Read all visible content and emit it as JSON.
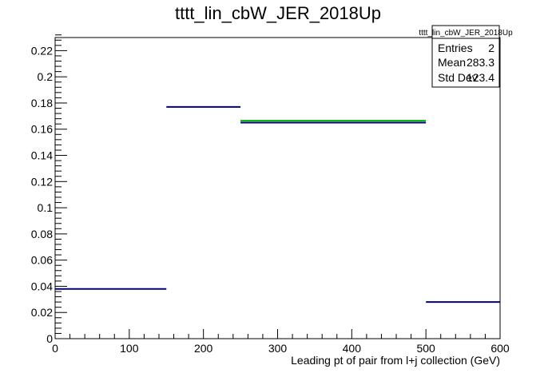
{
  "chart_data": {
    "type": "step",
    "title": "tttt_lin_cbW_JER_2018Up",
    "xlabel": "Leading pt of pair from l+j collection (GeV)",
    "ylabel": "",
    "xlim": [
      0,
      600
    ],
    "ylim": [
      0,
      0.23
    ],
    "x_ticks": [
      0,
      100,
      200,
      300,
      400,
      500,
      600
    ],
    "y_ticks": [
      0,
      0.02,
      0.04,
      0.06,
      0.08,
      0.1,
      0.12,
      0.14,
      0.16,
      0.18,
      0.2,
      0.22
    ],
    "y_tick_labels": [
      "0",
      "0.02",
      "0.04",
      "0.06",
      "0.08",
      "0.1",
      "0.12",
      "0.14",
      "0.16",
      "0.18",
      "0.2",
      "0.22"
    ],
    "grid": false,
    "colors": {
      "main": "#00007f",
      "secondary": "#00b400"
    },
    "series": [
      {
        "color": "#00007f",
        "bins": [
          {
            "x0": 0,
            "x1": 150,
            "y": 0.038
          },
          {
            "x0": 150,
            "x1": 250,
            "y": 0.177
          },
          {
            "x0": 250,
            "x1": 500,
            "y": 0.165
          },
          {
            "x0": 500,
            "x1": 600,
            "y": 0.028
          }
        ]
      },
      {
        "color": "#00b400",
        "bins": [
          {
            "x0": 250,
            "x1": 500,
            "y": 0.1665
          }
        ]
      }
    ],
    "stats_box": {
      "name": "tttt_lin_cbW_JER_2018Up",
      "rows": [
        {
          "label": "Entries",
          "value": "2"
        },
        {
          "label": "Mean",
          "value": "283.3"
        },
        {
          "label": "Std Dev",
          "value": "123.4"
        }
      ],
      "placement": "top-right"
    }
  }
}
